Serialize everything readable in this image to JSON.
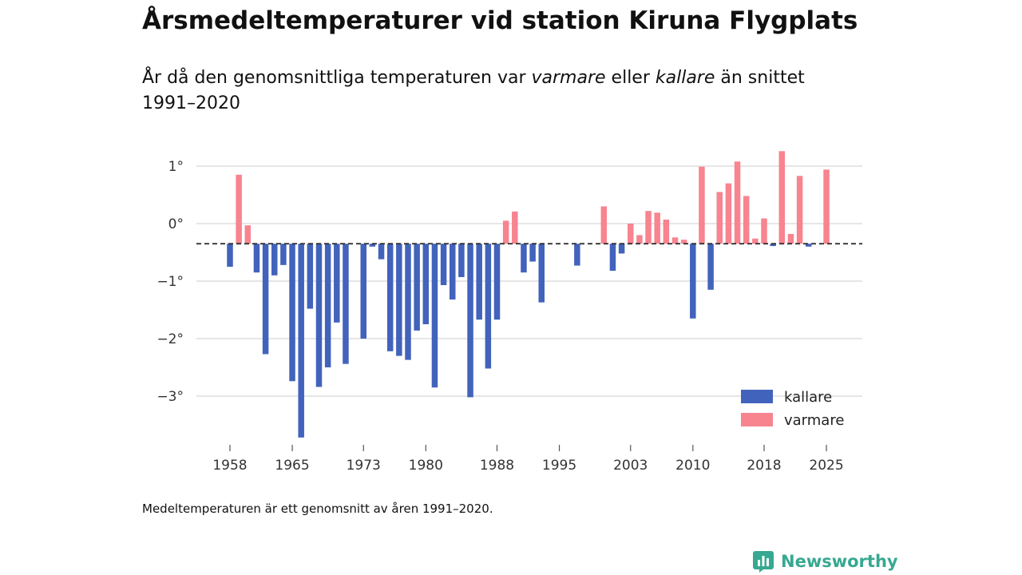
{
  "title": "Årsmedeltemperaturer vid station Kiruna Flygplats",
  "subtitle": {
    "part1": "År då den genomsnittliga temperaturen var ",
    "warm_word": "varmare",
    "part2": " eller ",
    "cold_word": "kallare",
    "part3": " än snittet 1991–2020"
  },
  "footnote": "Medeltemperaturen är ett genomsnitt av åren 1991–2020.",
  "brand": "Newsworthy",
  "colors": {
    "cold": "#4263bc",
    "warm": "#f7848f",
    "grid": "#dddddd",
    "baseline": "#333333",
    "brand": "#37a891"
  },
  "chart_data": {
    "type": "bar",
    "title": "Årsmedeltemperaturer vid station Kiruna Flygplats",
    "xlabel": "",
    "ylabel": "",
    "baseline": -0.35,
    "ylim": [
      -3.9,
      1.45
    ],
    "xlim": [
      1957,
      2026
    ],
    "y_ticks": [
      1,
      0,
      -1,
      -2,
      -3
    ],
    "y_tick_labels": [
      "1°",
      "0°",
      "−1°",
      "−2°",
      "−3°"
    ],
    "x_ticks": [
      1958,
      1965,
      1973,
      1980,
      1988,
      1995,
      2003,
      2010,
      2018,
      2025
    ],
    "x_tick_labels": [
      "1958",
      "1965",
      "1973",
      "1980",
      "1988",
      "1995",
      "2003",
      "2010",
      "2018",
      "2025"
    ],
    "legend": [
      {
        "name": "kallare",
        "color": "#4263bc"
      },
      {
        "name": "varmare",
        "color": "#f7848f"
      }
    ],
    "legend_position": "bottom-right",
    "years": [
      1958,
      1959,
      1960,
      1961,
      1962,
      1963,
      1964,
      1965,
      1966,
      1967,
      1968,
      1969,
      1970,
      1971,
      1973,
      1974,
      1975,
      1976,
      1977,
      1978,
      1979,
      1980,
      1981,
      1982,
      1983,
      1984,
      1985,
      1986,
      1987,
      1988,
      1989,
      1990,
      1991,
      1992,
      1993,
      1997,
      2000,
      2001,
      2002,
      2003,
      2004,
      2005,
      2006,
      2007,
      2008,
      2009,
      2010,
      2011,
      2012,
      2013,
      2014,
      2015,
      2016,
      2017,
      2018,
      2019,
      2020,
      2021,
      2022,
      2023,
      2025
    ],
    "values": [
      -0.75,
      0.85,
      -0.03,
      -0.85,
      -2.27,
      -0.9,
      -0.72,
      -2.74,
      -3.72,
      -1.48,
      -2.84,
      -2.5,
      -1.72,
      -2.44,
      -2.0,
      -0.4,
      -0.62,
      -2.22,
      -2.3,
      -2.37,
      -1.86,
      -1.75,
      -2.85,
      -1.07,
      -1.32,
      -0.93,
      -3.02,
      -1.67,
      -2.52,
      -1.67,
      0.05,
      0.21,
      -0.85,
      -0.66,
      -1.37,
      -0.73,
      0.3,
      -0.82,
      -0.52,
      0.0,
      -0.2,
      0.22,
      0.19,
      0.07,
      -0.24,
      -0.28,
      -1.65,
      0.99,
      -1.15,
      0.55,
      0.7,
      1.08,
      0.48,
      -0.26,
      0.09,
      -0.39,
      1.26,
      -0.18,
      0.83,
      -0.4,
      0.94
    ]
  }
}
